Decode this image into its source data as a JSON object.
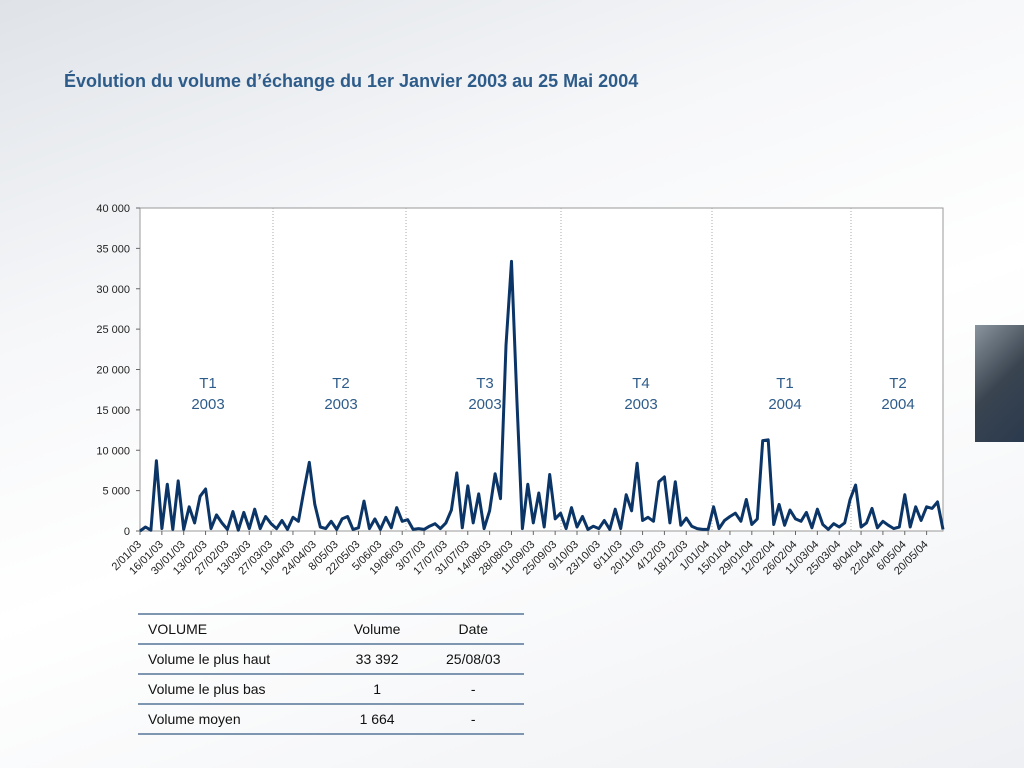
{
  "chart_data": {
    "type": "line",
    "title": "Évolution du volume d’échange du 1er Janvier 2003 au 25 Mai 2004",
    "categories": [
      "2/01/03",
      null,
      null,
      null,
      "16/01/03",
      null,
      null,
      null,
      "30/01/03",
      null,
      null,
      null,
      "13/02/03",
      null,
      null,
      null,
      "27/02/03",
      null,
      null,
      null,
      "13/03/03",
      null,
      null,
      null,
      "27/03/03",
      null,
      null,
      null,
      "10/04/03",
      null,
      null,
      null,
      "24/04/03",
      null,
      null,
      null,
      "8/05/03",
      null,
      null,
      null,
      "22/05/03",
      null,
      null,
      null,
      "5/06/03",
      null,
      null,
      null,
      "19/06/03",
      null,
      null,
      null,
      "3/07/03",
      null,
      null,
      null,
      "17/07/03",
      null,
      null,
      null,
      "31/07/03",
      null,
      null,
      null,
      "14/08/03",
      null,
      null,
      null,
      "28/08/03",
      null,
      null,
      null,
      "11/09/03",
      null,
      null,
      null,
      "25/09/03",
      null,
      null,
      null,
      "9/10/03",
      null,
      null,
      null,
      "23/10/03",
      null,
      null,
      null,
      "6/11/03",
      null,
      null,
      null,
      "20/11/03",
      null,
      null,
      null,
      "4/12/03",
      null,
      null,
      null,
      "18/12/03",
      null,
      null,
      null,
      "1/01/04",
      null,
      null,
      null,
      "15/01/04",
      null,
      null,
      null,
      "29/01/04",
      null,
      null,
      null,
      "12/02/04",
      null,
      null,
      null,
      "26/02/04",
      null,
      null,
      null,
      "11/03/04",
      null,
      null,
      null,
      "25/03/04",
      null,
      null,
      null,
      "8/04/04",
      null,
      null,
      null,
      "22/04/04",
      null,
      null,
      null,
      "6/05/04",
      null,
      null,
      null,
      "20/05/04",
      null,
      null,
      null
    ],
    "series": [
      {
        "name": "Volume",
        "color": "#0b3566",
        "values": [
          0,
          500,
          100,
          8700,
          300,
          5800,
          200,
          6200,
          200,
          3000,
          1000,
          4300,
          5200,
          300,
          2000,
          1000,
          200,
          2400,
          100,
          2300,
          300,
          2700,
          300,
          1800,
          900,
          300,
          1300,
          200,
          1700,
          1200,
          5000,
          8500,
          3300,
          500,
          300,
          1200,
          200,
          1500,
          1800,
          200,
          400,
          3700,
          300,
          1500,
          200,
          1700,
          400,
          2900,
          1200,
          1400,
          200,
          300,
          200,
          600,
          900,
          300,
          1000,
          2600,
          7200,
          400,
          5600,
          1000,
          4600,
          300,
          2500,
          7100,
          4000,
          23000,
          33392,
          16200,
          300,
          5800,
          1000,
          4700,
          500,
          7000,
          1500,
          2200,
          300,
          2900,
          500,
          1800,
          200,
          600,
          300,
          1300,
          200,
          2700,
          300,
          4500,
          2500,
          8400,
          1300,
          1700,
          1200,
          6100,
          6700,
          1000,
          6100,
          700,
          1600,
          600,
          300,
          200,
          200,
          3000,
          300,
          1300,
          1800,
          2200,
          1200,
          3900,
          800,
          1500,
          11200,
          11300,
          800,
          3300,
          700,
          2600,
          1500,
          1200,
          2300,
          400,
          2700,
          800,
          200,
          900,
          500,
          1000,
          3900,
          5700,
          500,
          1000,
          2800,
          400,
          1200,
          700,
          300,
          500,
          4500,
          500,
          3000,
          1300,
          3000,
          2800,
          3600,
          200
        ]
      }
    ],
    "ylim": [
      0,
      40000
    ],
    "yticks": [
      0,
      {
        "value": 5000,
        "label": "5 000"
      },
      {
        "value": 10000,
        "label": "10 000"
      },
      {
        "value": 15000,
        "label": "15 000"
      },
      {
        "value": 20000,
        "label": "20 000"
      },
      {
        "value": 25000,
        "label": "25 000"
      },
      {
        "value": 30000,
        "label": "30 000"
      },
      {
        "value": 35000,
        "label": "35 000"
      },
      {
        "value": 40000,
        "label": "40 000"
      }
    ],
    "annotations": [
      [
        "T1",
        "2003"
      ],
      [
        "T2",
        "2003"
      ],
      [
        "T3",
        "2003"
      ],
      [
        "T4",
        "2003"
      ],
      [
        "T1",
        "2004"
      ],
      [
        "T2",
        "2004"
      ]
    ]
  },
  "table": {
    "header": [
      "VOLUME",
      "Volume",
      "Date"
    ],
    "rows": [
      [
        "Volume le plus haut",
        "33 392",
        "25/08/03"
      ],
      [
        "Volume le plus bas",
        "1",
        "-"
      ],
      [
        "Volume moyen",
        "1 664",
        "-"
      ]
    ]
  }
}
